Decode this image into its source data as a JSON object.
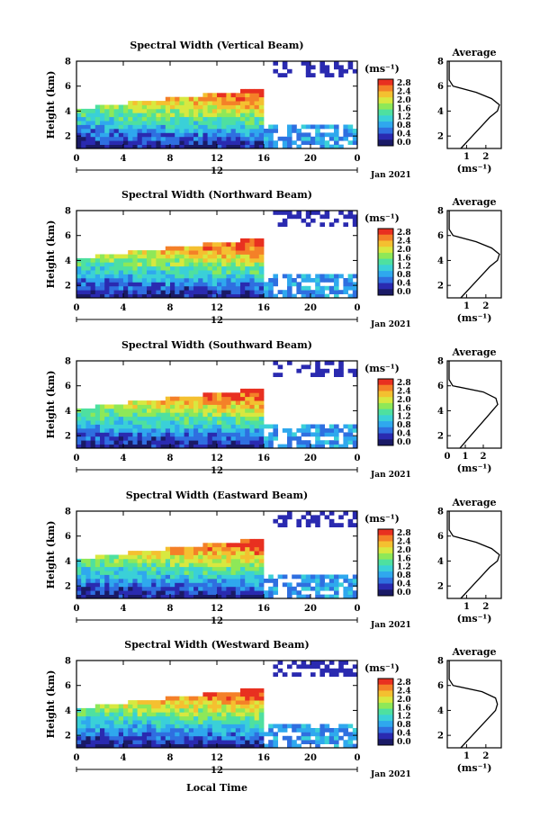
{
  "figure": {
    "x_axis_label": "Local Time",
    "date_label": "Jan 2021",
    "day_label": "12",
    "unit_label": "(ms⁻¹)",
    "average_title": "Average",
    "average_xlabel": "(ms⁻¹)"
  },
  "colorbar": {
    "ticks": [
      "2.8",
      "2.4",
      "2.0",
      "1.6",
      "1.2",
      "0.8",
      "0.4",
      "0.0"
    ],
    "colors": [
      "#1a1a66",
      "#2a2ab0",
      "#2f6fe0",
      "#2fa8ee",
      "#3ad0d8",
      "#4ee0a0",
      "#8ee858",
      "#d8e840",
      "#f4c030",
      "#f48028",
      "#e83020"
    ]
  },
  "colors": {
    "low": "#2a3ac0",
    "mid": "#38c8e0",
    "high": "#e84020",
    "sparse": "#2020a0"
  },
  "chart_data": [
    {
      "type": "heatmap",
      "title": "Spectral Width (Vertical Beam)",
      "ylabel": "Height (km)",
      "xlabel": "Local Time",
      "x_ticks": [
        "0",
        "4",
        "8",
        "12",
        "16",
        "20",
        "0"
      ],
      "y_ticks": [
        "2",
        "4",
        "6",
        "8"
      ],
      "xlim": [
        0,
        24
      ],
      "ylim": [
        1,
        8
      ],
      "average_profile": {
        "x_ticks": [
          "1",
          "2"
        ],
        "xlim": [
          0,
          2.8
        ],
        "height": [
          1,
          1.5,
          2,
          2.5,
          3,
          3.5,
          4,
          4.5,
          5,
          5.5,
          6,
          6.5,
          8
        ],
        "value": [
          0.7,
          1.0,
          1.3,
          1.6,
          1.9,
          2.2,
          2.6,
          2.7,
          2.3,
          1.5,
          0.3,
          0.1,
          0.1
        ]
      }
    },
    {
      "type": "heatmap",
      "title": "Spectral Width (Northward Beam)",
      "ylabel": "Height (km)",
      "xlabel": "Local Time",
      "x_ticks": [
        "0",
        "4",
        "8",
        "12",
        "16",
        "20",
        "0"
      ],
      "y_ticks": [
        "2",
        "4",
        "6",
        "8"
      ],
      "xlim": [
        0,
        24
      ],
      "ylim": [
        1,
        8
      ],
      "average_profile": {
        "x_ticks": [
          "1",
          "2"
        ],
        "xlim": [
          0,
          2.8
        ],
        "height": [
          1,
          1.5,
          2,
          2.5,
          3,
          3.5,
          4,
          4.5,
          5,
          5.5,
          6,
          6.5,
          8
        ],
        "value": [
          0.7,
          1.0,
          1.3,
          1.6,
          1.9,
          2.2,
          2.6,
          2.7,
          2.3,
          1.5,
          0.3,
          0.1,
          0.1
        ]
      }
    },
    {
      "type": "heatmap",
      "title": "Spectral Width (Southward Beam)",
      "ylabel": "Height (km)",
      "xlabel": "Local Time",
      "x_ticks": [
        "0",
        "4",
        "8",
        "12",
        "16",
        "20",
        "0"
      ],
      "y_ticks": [
        "2",
        "4",
        "6",
        "8"
      ],
      "xlim": [
        0,
        24
      ],
      "ylim": [
        1,
        8
      ],
      "average_profile": {
        "x_ticks": [
          "0",
          "1",
          "2"
        ],
        "xlim": [
          0,
          3.0
        ],
        "height": [
          1,
          1.5,
          2,
          2.5,
          3,
          3.5,
          4,
          4.5,
          5,
          5.5,
          6,
          6.5,
          8
        ],
        "value": [
          0.7,
          1.0,
          1.3,
          1.6,
          1.9,
          2.2,
          2.5,
          2.8,
          2.7,
          2.0,
          0.3,
          0.1,
          0.1
        ]
      }
    },
    {
      "type": "heatmap",
      "title": "Spectral Width (Eastward Beam)",
      "ylabel": "Height (km)",
      "xlabel": "Local Time",
      "x_ticks": [
        "0",
        "4",
        "8",
        "12",
        "16",
        "20",
        "0"
      ],
      "y_ticks": [
        "2",
        "4",
        "6",
        "8"
      ],
      "xlim": [
        0,
        24
      ],
      "ylim": [
        1,
        8
      ],
      "average_profile": {
        "x_ticks": [
          "1",
          "2"
        ],
        "xlim": [
          0,
          2.8
        ],
        "height": [
          1,
          1.5,
          2,
          2.5,
          3,
          3.5,
          4,
          4.5,
          5,
          5.5,
          6,
          6.5,
          8
        ],
        "value": [
          0.7,
          1.0,
          1.3,
          1.6,
          1.9,
          2.2,
          2.6,
          2.7,
          2.3,
          1.5,
          0.3,
          0.1,
          0.1
        ]
      }
    },
    {
      "type": "heatmap",
      "title": "Spectral Width (Westward Beam)",
      "ylabel": "Height (km)",
      "xlabel": "Local Time",
      "x_ticks": [
        "0",
        "4",
        "8",
        "12",
        "16",
        "20",
        "0"
      ],
      "y_ticks": [
        "2",
        "4",
        "6",
        "8"
      ],
      "xlim": [
        0,
        24
      ],
      "ylim": [
        1,
        8
      ],
      "average_profile": {
        "x_ticks": [
          "1",
          "2"
        ],
        "xlim": [
          0,
          2.8
        ],
        "height": [
          1,
          1.5,
          2,
          2.5,
          3,
          3.5,
          4,
          4.5,
          5,
          5.5,
          6,
          6.5,
          8
        ],
        "value": [
          0.7,
          1.0,
          1.3,
          1.6,
          1.9,
          2.2,
          2.5,
          2.6,
          2.5,
          1.8,
          0.3,
          0.1,
          0.1
        ]
      }
    }
  ]
}
